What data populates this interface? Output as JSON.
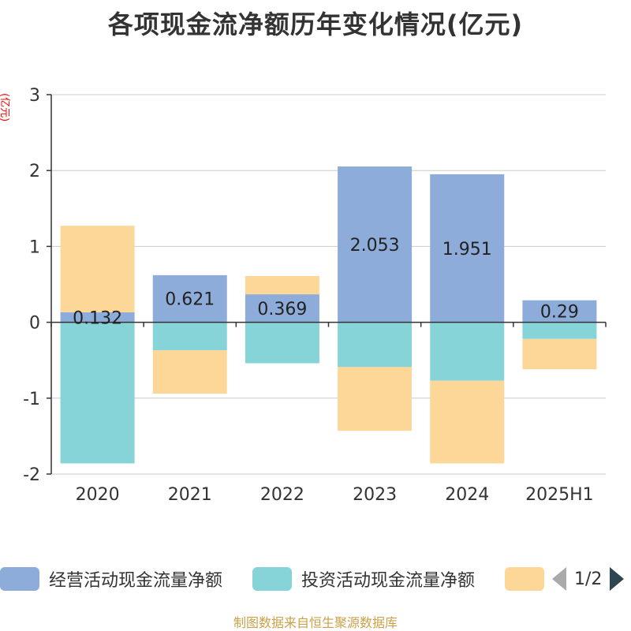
{
  "chart_data": {
    "type": "bar",
    "stacked": true,
    "title": "各项现金流净额历年变化情况(亿元)",
    "ylabel": "(亿元)",
    "ylim": [
      -2,
      3
    ],
    "yticks": [
      -2,
      -1,
      0,
      1,
      2,
      3
    ],
    "grid": true,
    "categories": [
      "2020",
      "2021",
      "2022",
      "2023",
      "2024",
      "2025H1"
    ],
    "series": [
      {
        "name": "经营活动现金流量净额",
        "color": "#8eacd9",
        "values": [
          0.132,
          0.621,
          0.369,
          2.053,
          1.951,
          0.29
        ],
        "labels": [
          "0.132",
          "0.621",
          "0.369",
          "2.053",
          "1.951",
          "0.29"
        ]
      },
      {
        "name": "投资活动现金流量净额",
        "color": "#86d4d8",
        "values": [
          -1.86,
          -0.37,
          -0.54,
          -0.59,
          -0.77,
          -0.22
        ]
      },
      {
        "name": "",
        "color": "#fdd797",
        "values": [
          1.14,
          -0.57,
          0.24,
          -0.84,
          -1.09,
          -0.4
        ]
      }
    ],
    "legend": {
      "position": "bottom",
      "page": "1/2"
    }
  },
  "source": "制图数据来自恒生聚源数据库"
}
